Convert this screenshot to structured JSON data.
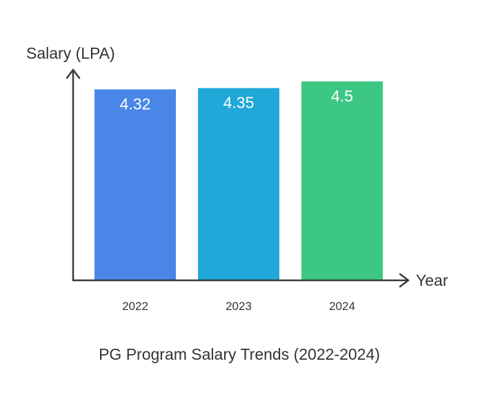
{
  "chart_data": {
    "type": "bar",
    "title": "PG Program Salary Trends (2022-2024)",
    "xlabel": "Year",
    "ylabel": "Salary (LPA)",
    "categories": [
      "2022",
      "2023",
      "2024"
    ],
    "values": [
      4.32,
      4.35,
      4.5
    ],
    "data_labels": [
      "4.32",
      "4.35",
      "4.5"
    ],
    "colors": [
      "#4a86e8",
      "#20a8d8",
      "#3cc783"
    ],
    "ylim": [
      0,
      4.78
    ],
    "grid": false,
    "legend": "none"
  }
}
